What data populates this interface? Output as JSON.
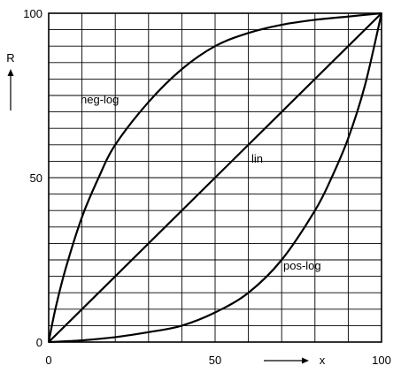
{
  "chart_data": {
    "type": "line",
    "xlabel": "x",
    "ylabel": "R",
    "xlim": [
      0,
      100
    ],
    "ylim": [
      0,
      100
    ],
    "grid": true,
    "x_ticks": [
      0,
      50,
      100
    ],
    "y_ticks": [
      0,
      50,
      100
    ],
    "grid_x": [
      0,
      10,
      20,
      30,
      40,
      50,
      60,
      70,
      80,
      90,
      100
    ],
    "grid_y": [
      0,
      5,
      10,
      15,
      20,
      25,
      30,
      35,
      40,
      45,
      50,
      55,
      60,
      65,
      70,
      75,
      80,
      85,
      90,
      95,
      100
    ],
    "series": [
      {
        "name": "neg-log",
        "x": [
          0,
          2,
          5,
          10,
          15,
          20,
          30,
          40,
          50,
          60,
          70,
          80,
          90,
          100
        ],
        "y": [
          0,
          10,
          22,
          38,
          50,
          60,
          73,
          83,
          90,
          94,
          96.5,
          98,
          99,
          100
        ]
      },
      {
        "name": "lin",
        "x": [
          0,
          100
        ],
        "y": [
          0,
          100
        ]
      },
      {
        "name": "pos-log",
        "x": [
          0,
          10,
          20,
          30,
          40,
          50,
          60,
          70,
          80,
          85,
          90,
          95,
          100
        ],
        "y": [
          0,
          0.5,
          1.5,
          3,
          5,
          9,
          15,
          25,
          40,
          50,
          62,
          78,
          100
        ]
      }
    ]
  }
}
